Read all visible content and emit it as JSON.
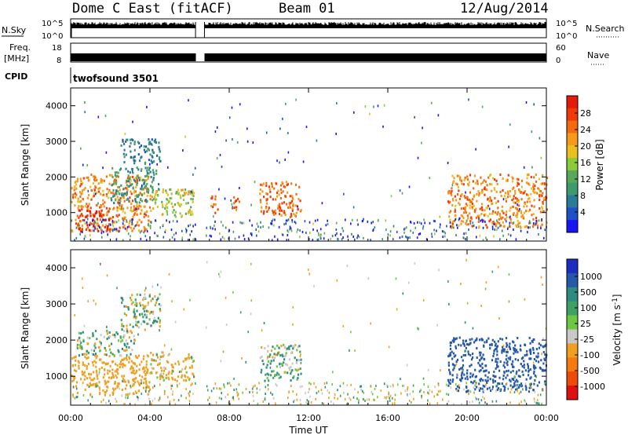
{
  "header": {
    "radar": "Dome C East (fitACF)",
    "beam": "Beam 01",
    "date": "12/Aug/2014"
  },
  "top_panels": {
    "nsky": {
      "left_label": "N.Sky",
      "left_ticks": [
        "10^5",
        "10^0"
      ],
      "right_label": "N.Search",
      "right_ticks": [
        "10^5",
        "10^0"
      ]
    },
    "freq": {
      "left_label_1": "Freq.",
      "left_label_2": "[MHz]",
      "left_ticks": [
        "18",
        "8"
      ],
      "right_label": "Nave",
      "right_ticks": [
        "60",
        "0"
      ]
    },
    "cpid": {
      "label": "CPID",
      "program": "twofsound 3501"
    }
  },
  "colors": {
    "power": [
      "#1515f5",
      "#2050c8",
      "#2a7a9a",
      "#3e9b6e",
      "#5aa85a",
      "#8ccb3a",
      "#e8c020",
      "#f59a1a",
      "#f46a10",
      "#f03a08",
      "#e41a0a"
    ],
    "velocity": [
      "#1a2fbf",
      "#2558a8",
      "#2f8a80",
      "#3fa066",
      "#6cc840",
      "#c8c8c8",
      "#f0a020",
      "#f57a10",
      "#ee4a0a",
      "#e01010"
    ]
  },
  "chart_data": [
    {
      "type": "heatmap",
      "name": "power-panel",
      "ylabel": "Slant Range [km]",
      "y_ticks": [
        1000,
        2000,
        3000,
        4000
      ],
      "ylim": [
        200,
        4500
      ],
      "x_ticks": [
        "00:00",
        "04:00",
        "08:00",
        "12:00",
        "16:00",
        "20:00",
        "00:00"
      ],
      "xlim_hours": [
        0,
        24
      ],
      "colorbar": {
        "label": "Power [dB]",
        "ticks": [
          "28",
          "24",
          "20",
          "16",
          "12",
          "8",
          "4"
        ]
      },
      "regions": [
        {
          "t": [
            0.0,
            4.0
          ],
          "r": [
            500,
            2100
          ],
          "level": 0.75
        },
        {
          "t": [
            0.3,
            2.0
          ],
          "r": [
            500,
            1100
          ],
          "level": 0.95
        },
        {
          "t": [
            2.0,
            4.4
          ],
          "r": [
            1300,
            2300
          ],
          "level": 0.3
        },
        {
          "t": [
            2.5,
            4.5
          ],
          "r": [
            2400,
            3100
          ],
          "level": 0.2
        },
        {
          "t": [
            4.0,
            6.2
          ],
          "r": [
            900,
            1700
          ],
          "level": 0.55
        },
        {
          "t": [
            7.0,
            7.4
          ],
          "r": [
            1000,
            1500
          ],
          "level": 0.8
        },
        {
          "t": [
            8.0,
            8.5
          ],
          "r": [
            1100,
            1500
          ],
          "level": 0.85
        },
        {
          "t": [
            9.5,
            11.6
          ],
          "r": [
            900,
            1900
          ],
          "level": 0.8
        },
        {
          "t": [
            19.0,
            24.0
          ],
          "r": [
            600,
            2100
          ],
          "level": 0.75
        }
      ]
    },
    {
      "type": "heatmap",
      "name": "velocity-panel",
      "ylabel": "Slant Range [km]",
      "y_ticks": [
        1000,
        2000,
        3000,
        4000
      ],
      "ylim": [
        200,
        4500
      ],
      "x_ticks": [
        "00:00",
        "04:00",
        "08:00",
        "12:00",
        "16:00",
        "20:00",
        "00:00"
      ],
      "xlim_hours": [
        0,
        24
      ],
      "xlabel": "Time UT",
      "colorbar": {
        "label": "Velocity [m s-1]",
        "ticks": [
          "1000",
          "500",
          "100",
          "25",
          "-25",
          "-100",
          "-500",
          "-1000"
        ]
      },
      "regions": [
        {
          "t": [
            0.0,
            4.0
          ],
          "r": [
            500,
            1600
          ],
          "level": -300
        },
        {
          "t": [
            0.3,
            3.2
          ],
          "r": [
            1600,
            2300
          ],
          "level": 10
        },
        {
          "t": [
            2.5,
            4.5
          ],
          "r": [
            2300,
            3300
          ],
          "level": 0
        },
        {
          "t": [
            4.0,
            6.2
          ],
          "r": [
            900,
            1700
          ],
          "level": -150
        },
        {
          "t": [
            9.5,
            11.6
          ],
          "r": [
            900,
            1900
          ],
          "level": 60
        },
        {
          "t": [
            19.0,
            24.0
          ],
          "r": [
            600,
            2100
          ],
          "level": 700
        }
      ]
    }
  ]
}
